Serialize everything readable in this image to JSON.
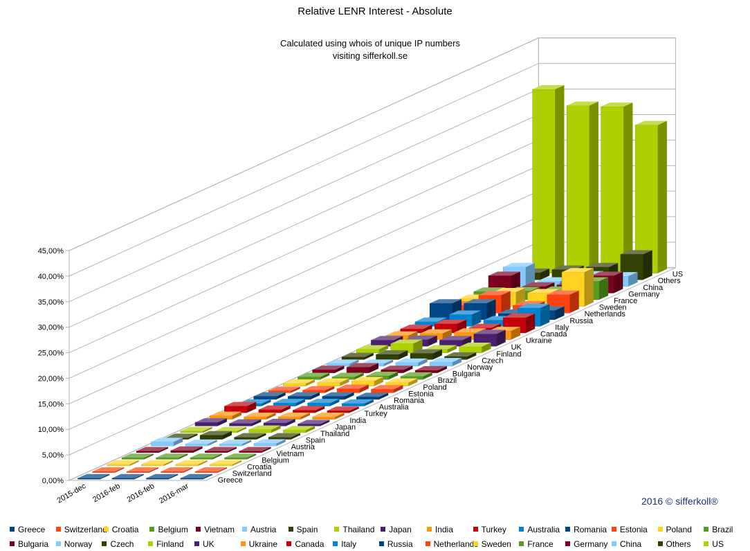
{
  "chart_data": {
    "type": "bar",
    "style": "3d-depth-bars",
    "title": "Relative LENR Interest - Absolute",
    "subtitle": [
      "Calculated using whois of unique IP numbers",
      "visiting sifferkoll.se"
    ],
    "credit": "2016 © sifferkoll®",
    "categories": [
      "2015-dec",
      "2016-feb",
      "2016-feb",
      "2016-mar"
    ],
    "y_ticks": [
      "0,00%",
      "5,00%",
      "10,00%",
      "15,00%",
      "20,00%",
      "25,00%",
      "30,00%",
      "35,00%",
      "40,00%",
      "45,00%"
    ],
    "ylim": [
      0,
      45
    ],
    "grid": true,
    "legend_position": "bottom",
    "series": [
      {
        "name": "Greece",
        "color": "#004586",
        "values": [
          0.2,
          0.2,
          0.2,
          0.2
        ]
      },
      {
        "name": "Switzerland",
        "color": "#ff420e",
        "values": [
          0.2,
          0.2,
          0.2,
          0.2
        ]
      },
      {
        "name": "Croatia",
        "color": "#ffd320",
        "values": [
          0.3,
          0.3,
          0.3,
          0.3
        ]
      },
      {
        "name": "Belgium",
        "color": "#579d1c",
        "values": [
          0.3,
          0.3,
          0.3,
          0.3
        ]
      },
      {
        "name": "Vietnam",
        "color": "#7e0021",
        "values": [
          0.3,
          0.4,
          0.3,
          0.3
        ]
      },
      {
        "name": "Austria",
        "color": "#83caff",
        "values": [
          0.8,
          0.4,
          0.4,
          0.5
        ]
      },
      {
        "name": "Spain",
        "color": "#314004",
        "values": [
          0.3,
          0.8,
          0.4,
          0.4
        ]
      },
      {
        "name": "Thailand",
        "color": "#aecf00",
        "values": [
          0.3,
          0.3,
          0.6,
          0.5
        ]
      },
      {
        "name": "Japan",
        "color": "#4b1f6f",
        "values": [
          0.7,
          0.5,
          0.6,
          0.4
        ]
      },
      {
        "name": "India",
        "color": "#ff950e",
        "values": [
          0.7,
          0.5,
          0.5,
          0.5
        ]
      },
      {
        "name": "Turkey",
        "color": "#c5000b",
        "values": [
          1.3,
          0.6,
          0.5,
          0.4
        ]
      },
      {
        "name": "Australia",
        "color": "#0084d1",
        "values": [
          0.5,
          0.6,
          0.6,
          0.5
        ]
      },
      {
        "name": "Romania",
        "color": "#004586",
        "values": [
          0.6,
          0.6,
          0.6,
          0.5
        ]
      },
      {
        "name": "Estonia",
        "color": "#ff420e",
        "values": [
          0.4,
          0.5,
          0.8,
          0.7
        ]
      },
      {
        "name": "Poland",
        "color": "#ffd320",
        "values": [
          0.5,
          0.7,
          1.0,
          0.7
        ]
      },
      {
        "name": "Brazil",
        "color": "#579d1c",
        "values": [
          0.5,
          0.5,
          0.7,
          0.6
        ]
      },
      {
        "name": "Bulgaria",
        "color": "#7e0021",
        "values": [
          0.6,
          1.1,
          0.6,
          0.5
        ]
      },
      {
        "name": "Norway",
        "color": "#83caff",
        "values": [
          0.5,
          0.5,
          0.7,
          0.8
        ]
      },
      {
        "name": "Czech",
        "color": "#314004",
        "values": [
          0.5,
          1.0,
          1.2,
          0.6
        ]
      },
      {
        "name": "Finland",
        "color": "#aecf00",
        "values": [
          0.7,
          1.8,
          0.7,
          1.2
        ]
      },
      {
        "name": "UK",
        "color": "#4b1f6f",
        "values": [
          1.2,
          1.3,
          1.2,
          2.4
        ]
      },
      {
        "name": "Ukraine",
        "color": "#ff950e",
        "values": [
          0.8,
          1.2,
          1.4,
          1.7
        ]
      },
      {
        "name": "Canada",
        "color": "#c5000b",
        "values": [
          0.8,
          1.8,
          1.0,
          3.0
        ]
      },
      {
        "name": "Italy",
        "color": "#0084d1",
        "values": [
          0.9,
          2.3,
          1.2,
          3.6
        ]
      },
      {
        "name": "Russia",
        "color": "#004586",
        "values": [
          3.2,
          3.2,
          1.2,
          1.8
        ]
      },
      {
        "name": "Netherlands",
        "color": "#ff420e",
        "values": [
          1.5,
          3.5,
          1.5,
          3.6
        ]
      },
      {
        "name": "Sweden",
        "color": "#ffd320",
        "values": [
          1.5,
          2.8,
          2.6,
          6.7
        ]
      },
      {
        "name": "France",
        "color": "#579d1c",
        "values": [
          1.6,
          1.7,
          1.8,
          3.6
        ]
      },
      {
        "name": "Germany",
        "color": "#7e0021",
        "values": [
          3.4,
          1.3,
          1.6,
          3.4
        ]
      },
      {
        "name": "China",
        "color": "#83caff",
        "values": [
          3.8,
          1.0,
          2.2,
          2.0
        ]
      },
      {
        "name": "Others",
        "color": "#314004",
        "values": [
          1.4,
          2.0,
          2.5,
          5.0
        ]
      },
      {
        "name": "US",
        "color": "#aecf00",
        "values": [
          36.0,
          32.8,
          32.6,
          29.0
        ]
      }
    ]
  }
}
